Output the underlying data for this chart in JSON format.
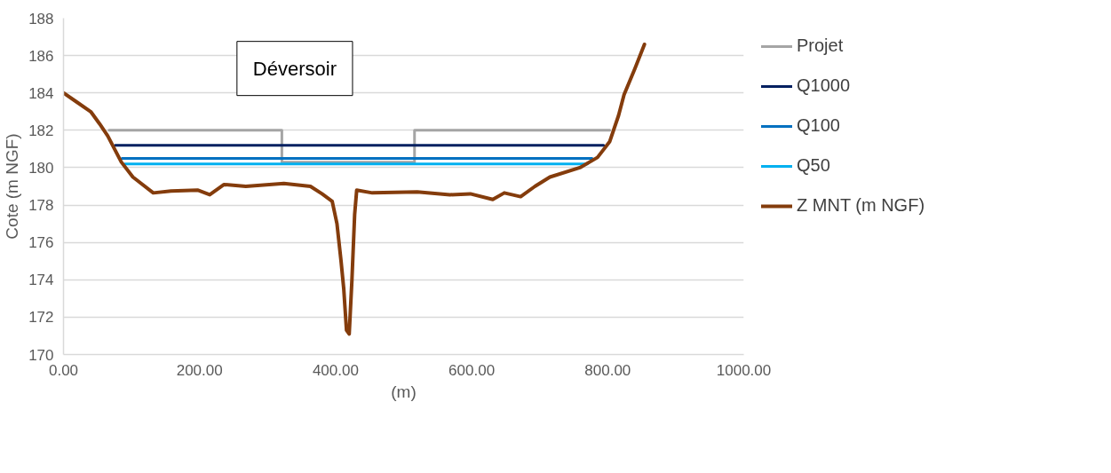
{
  "chart_data": {
    "type": "line",
    "xlabel": "(m)",
    "ylabel": "Cote (m NGF)",
    "annotations": [
      "Déversoir"
    ],
    "xlim": [
      0,
      1000
    ],
    "ylim": [
      170,
      188
    ],
    "xticks": [
      {
        "value": 0,
        "label": "0.00"
      },
      {
        "value": 200,
        "label": "200.00"
      },
      {
        "value": 400,
        "label": "400.00"
      },
      {
        "value": 600,
        "label": "600.00"
      },
      {
        "value": 800,
        "label": "800.00"
      },
      {
        "value": 1000,
        "label": "1000.00"
      }
    ],
    "yticks": [
      170,
      172,
      174,
      176,
      178,
      180,
      182,
      184,
      186,
      188
    ],
    "grid": "y",
    "legend": "right",
    "marker": "none",
    "line_style": "solid",
    "series": [
      {
        "name": "Projet",
        "color": "#a5a5a5",
        "x": [
          67,
          321,
          321,
          516,
          516,
          803
        ],
        "values": [
          182.0,
          182.0,
          180.3,
          180.3,
          182.0,
          182.0
        ]
      },
      {
        "name": "Q1000",
        "color": "#002060",
        "x": [
          76,
          794
        ],
        "values": [
          181.2,
          181.2
        ]
      },
      {
        "name": "Q100",
        "color": "#0070c0",
        "x": [
          86,
          777
        ],
        "values": [
          180.5,
          180.5
        ]
      },
      {
        "name": "Q50",
        "color": "#00b0f0",
        "x": [
          90,
          770
        ],
        "values": [
          180.2,
          180.2
        ]
      },
      {
        "name": "Z MNT (m NGF)",
        "color": "#843c0c",
        "x": [
          0,
          20,
          40,
          53,
          65,
          85,
          102,
          132,
          158,
          197,
          215,
          236,
          268,
          324,
          363,
          380,
          395,
          402,
          408,
          412,
          416,
          420,
          424,
          428,
          431,
          454,
          520,
          568,
          598,
          631,
          648,
          672,
          693,
          715,
          759,
          785,
          803,
          816,
          824,
          840,
          854
        ],
        "values": [
          184.0,
          183.5,
          183.0,
          182.35,
          181.7,
          180.3,
          179.5,
          178.65,
          178.75,
          178.8,
          178.55,
          179.1,
          179.0,
          179.15,
          179.0,
          178.6,
          178.2,
          177.0,
          175.0,
          173.5,
          171.3,
          171.1,
          174.0,
          177.5,
          178.8,
          178.65,
          178.7,
          178.55,
          178.6,
          178.3,
          178.65,
          178.45,
          179.0,
          179.5,
          180.0,
          180.55,
          181.4,
          182.8,
          183.9,
          185.3,
          186.6
        ]
      }
    ]
  }
}
